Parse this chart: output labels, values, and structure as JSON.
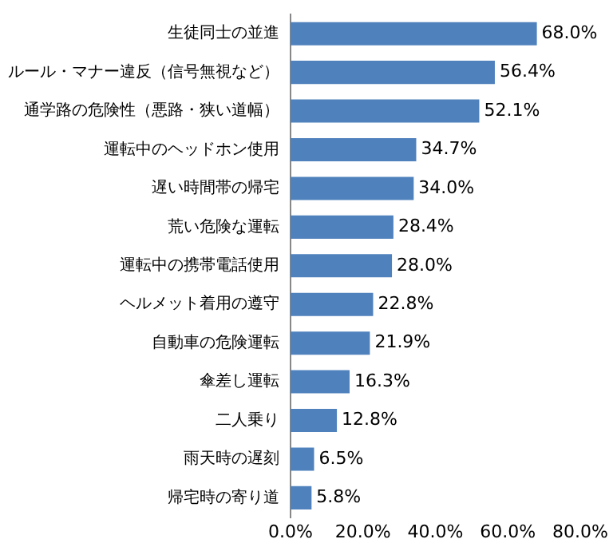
{
  "chart_data": {
    "type": "bar",
    "orientation": "horizontal",
    "categories": [
      "生徒同士の並進",
      "ルール・マナー違反（信号無視など）",
      "通学路の危険性（悪路・狭い道幅）",
      "運転中のヘッドホン使用",
      "遅い時間帯の帰宅",
      "荒い危険な運転",
      "運転中の携帯電話使用",
      "ヘルメット着用の遵守",
      "自動車の危険運転",
      "傘差し運転",
      "二人乗り",
      "雨天時の遅刻",
      "帰宅時の寄り道"
    ],
    "values": [
      68.0,
      56.4,
      52.1,
      34.7,
      34.0,
      28.4,
      28.0,
      22.8,
      21.9,
      16.3,
      12.8,
      6.5,
      5.8
    ],
    "value_labels": [
      "68.0%",
      "56.4%",
      "52.1%",
      "34.7%",
      "34.0%",
      "28.4%",
      "28.0%",
      "22.8%",
      "21.9%",
      "16.3%",
      "12.8%",
      "6.5%",
      "5.8%"
    ],
    "color": "#4f81bd",
    "xlim": [
      0,
      80
    ],
    "xticks": [
      {
        "value": 0,
        "label": "0.0%"
      },
      {
        "value": 20,
        "label": "20.0%"
      },
      {
        "value": 40,
        "label": "40.0%"
      },
      {
        "value": 60,
        "label": "60.0%"
      },
      {
        "value": 80,
        "label": "80.0%"
      }
    ],
    "grid": false,
    "legend": false
  }
}
